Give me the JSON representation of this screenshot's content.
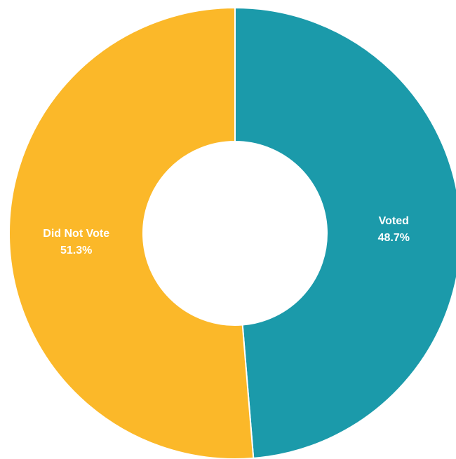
{
  "chart_data": {
    "type": "pie",
    "variant": "donut",
    "slices": [
      {
        "label": "Voted",
        "value": 48.7,
        "display": "48.7%",
        "color": "#1b9aaa"
      },
      {
        "label": "Did Not Vote",
        "value": 51.3,
        "display": "51.3%",
        "color": "#fbb829"
      }
    ],
    "start_angle_deg": 0,
    "direction": "clockwise",
    "background": "#ffffff",
    "slice_border": "#ffffff"
  }
}
